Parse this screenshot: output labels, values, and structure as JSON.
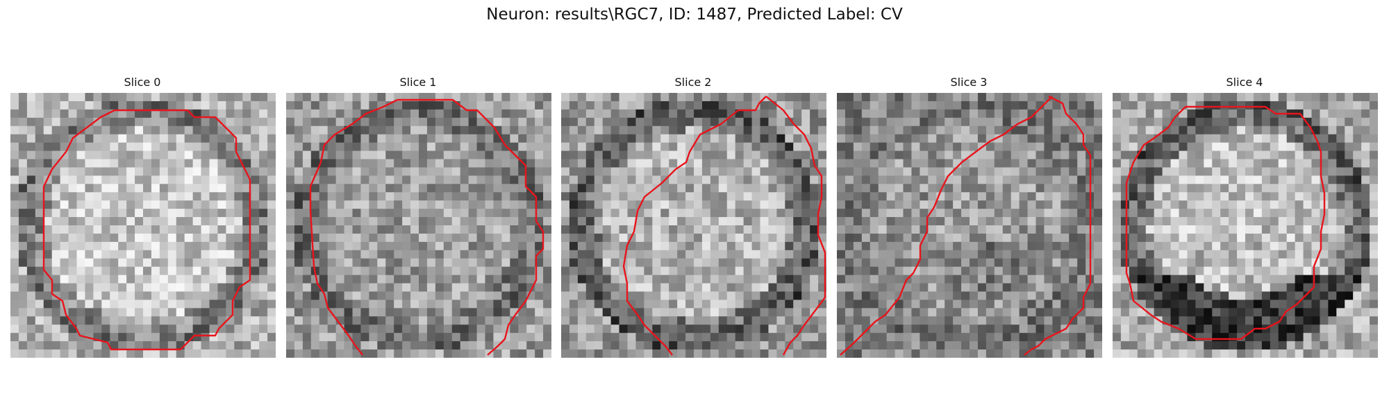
{
  "figure": {
    "title": "Neuron: results\\RGC7, ID: 1487, Predicted Label: CV"
  },
  "panels": [
    {
      "title": "Slice 0"
    },
    {
      "title": "Slice 1"
    },
    {
      "title": "Slice 2"
    },
    {
      "title": "Slice 3"
    },
    {
      "title": "Slice 4"
    }
  ],
  "colors": {
    "contour": "#e8141c",
    "background": "#ffffff"
  }
}
